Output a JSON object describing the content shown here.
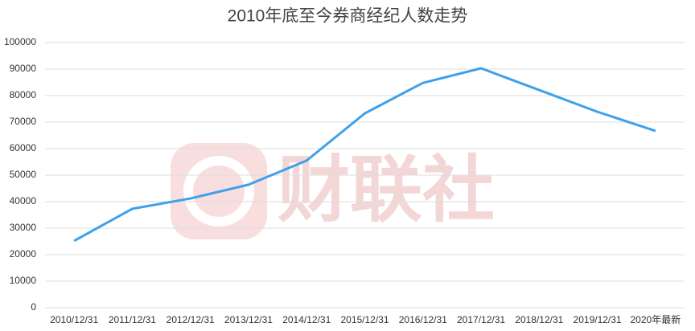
{
  "chart_data": {
    "type": "line",
    "title": "2010年底至今券商经纪人数走势",
    "watermark": "财联社",
    "categories": [
      "2010/12/31",
      "2011/12/31",
      "2012/12/31",
      "2013/12/31",
      "2014/12/31",
      "2015/12/31",
      "2016/12/31",
      "2017/12/31",
      "2018/12/31",
      "2019/12/31",
      "2020年最新"
    ],
    "values": [
      25200,
      37300,
      41200,
      46400,
      55500,
      73300,
      84800,
      90300,
      82100,
      73900,
      66700
    ],
    "color": "#3ea1ea",
    "ylim": [
      0,
      100000
    ],
    "yticks": [
      0,
      10000,
      20000,
      30000,
      40000,
      50000,
      60000,
      70000,
      80000,
      90000,
      100000
    ],
    "grid": true
  }
}
